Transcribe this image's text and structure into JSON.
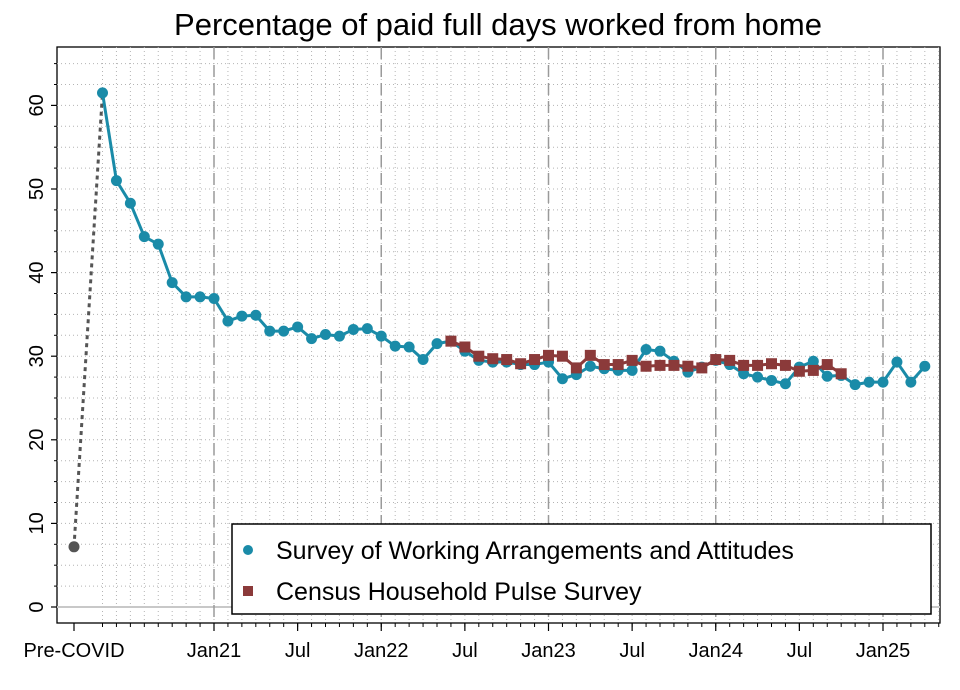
{
  "chart_data": {
    "type": "line",
    "title": "Percentage of paid full days worked from home",
    "xlabel": "",
    "ylabel": "",
    "ylim": [
      0,
      65
    ],
    "yticks": [
      0,
      10,
      20,
      30,
      40,
      50,
      60
    ],
    "x_tick_labels": [
      "Pre-COVID",
      "Jan21",
      "Jul",
      "Jan22",
      "Jul",
      "Jan23",
      "Jul",
      "Jan24",
      "Jul",
      "Jan25"
    ],
    "x_tick_dates": [
      "Pre-COVID",
      "2021-01",
      "2021-07",
      "2022-01",
      "2022-07",
      "2023-01",
      "2023-07",
      "2024-01",
      "2024-07",
      "2025-01"
    ],
    "grid": true,
    "legend_position": "bottom-right",
    "colors": {
      "swaa": "#1a8ba8",
      "pulse": "#8b3a3a",
      "pre_covid": "#555555"
    },
    "pre_covid": {
      "label": "Pre-COVID",
      "value": 7.2
    },
    "series": [
      {
        "name": "Survey of Working Arrangements and Attitudes",
        "marker": "circle",
        "points": [
          [
            "2020-05",
            61.5
          ],
          [
            "2020-06",
            51.0
          ],
          [
            "2020-07",
            48.3
          ],
          [
            "2020-08",
            44.3
          ],
          [
            "2020-09",
            43.4
          ],
          [
            "2020-10",
            38.8
          ],
          [
            "2020-11",
            37.1
          ],
          [
            "2020-12",
            37.1
          ],
          [
            "2021-01",
            36.9
          ],
          [
            "2021-02",
            34.2
          ],
          [
            "2021-03",
            34.8
          ],
          [
            "2021-04",
            34.9
          ],
          [
            "2021-05",
            33.0
          ],
          [
            "2021-06",
            33.0
          ],
          [
            "2021-07",
            33.5
          ],
          [
            "2021-08",
            32.1
          ],
          [
            "2021-09",
            32.6
          ],
          [
            "2021-10",
            32.4
          ],
          [
            "2021-11",
            33.2
          ],
          [
            "2021-12",
            33.3
          ],
          [
            "2022-01",
            32.4
          ],
          [
            "2022-02",
            31.2
          ],
          [
            "2022-03",
            31.1
          ],
          [
            "2022-04",
            29.6
          ],
          [
            "2022-05",
            31.5
          ],
          [
            "2022-06",
            31.8
          ],
          [
            "2022-07",
            30.6
          ],
          [
            "2022-08",
            29.5
          ],
          [
            "2022-09",
            29.3
          ],
          [
            "2022-10",
            29.3
          ],
          [
            "2022-11",
            29.0
          ],
          [
            "2022-12",
            29.0
          ],
          [
            "2023-01",
            29.3
          ],
          [
            "2023-02",
            27.3
          ],
          [
            "2023-03",
            27.8
          ],
          [
            "2023-04",
            28.8
          ],
          [
            "2023-05",
            28.5
          ],
          [
            "2023-06",
            28.3
          ],
          [
            "2023-07",
            28.3
          ],
          [
            "2023-08",
            30.8
          ],
          [
            "2023-09",
            30.6
          ],
          [
            "2023-10",
            29.4
          ],
          [
            "2023-11",
            28.1
          ],
          [
            "2023-12",
            28.7
          ],
          [
            "2024-01",
            29.5
          ],
          [
            "2024-02",
            29.0
          ],
          [
            "2024-03",
            27.9
          ],
          [
            "2024-04",
            27.5
          ],
          [
            "2024-05",
            27.1
          ],
          [
            "2024-06",
            26.7
          ],
          [
            "2024-07",
            28.7
          ],
          [
            "2024-08",
            29.4
          ],
          [
            "2024-09",
            27.6
          ],
          [
            "2024-10",
            27.7
          ],
          [
            "2024-11",
            26.6
          ],
          [
            "2024-12",
            26.9
          ],
          [
            "2025-01",
            26.9
          ],
          [
            "2025-02",
            29.3
          ],
          [
            "2025-03",
            26.9
          ],
          [
            "2025-04",
            28.8
          ]
        ]
      },
      {
        "name": "Census Household Pulse Survey",
        "marker": "square",
        "points": [
          [
            "2022-06",
            31.8
          ],
          [
            "2022-07",
            31.1
          ],
          [
            "2022-08",
            30.0
          ],
          [
            "2022-09",
            29.7
          ],
          [
            "2022-10",
            29.6
          ],
          [
            "2022-11",
            29.1
          ],
          [
            "2022-12",
            29.6
          ],
          [
            "2023-01",
            30.1
          ],
          [
            "2023-02",
            30.0
          ],
          [
            "2023-03",
            28.6
          ],
          [
            "2023-04",
            30.1
          ],
          [
            "2023-05",
            29.0
          ],
          [
            "2023-06",
            29.0
          ],
          [
            "2023-07",
            29.5
          ],
          [
            "2023-08",
            28.8
          ],
          [
            "2023-09",
            28.9
          ],
          [
            "2023-10",
            28.9
          ],
          [
            "2023-11",
            28.8
          ],
          [
            "2023-12",
            28.6
          ],
          [
            "2024-01",
            29.6
          ],
          [
            "2024-02",
            29.5
          ],
          [
            "2024-03",
            28.9
          ],
          [
            "2024-04",
            28.9
          ],
          [
            "2024-05",
            29.1
          ],
          [
            "2024-06",
            28.9
          ],
          [
            "2024-07",
            28.2
          ],
          [
            "2024-08",
            28.3
          ],
          [
            "2024-09",
            29.0
          ],
          [
            "2024-10",
            27.9
          ]
        ]
      }
    ]
  }
}
